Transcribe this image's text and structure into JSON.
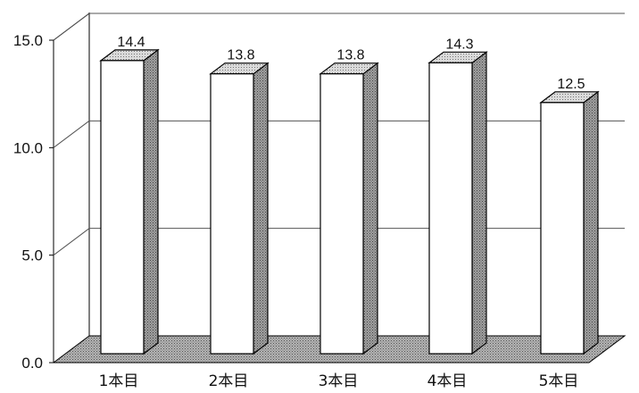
{
  "chart_data": {
    "type": "bar",
    "style": "3d-column",
    "title": "",
    "xlabel": "",
    "ylabel": "",
    "ylim": [
      0,
      15
    ],
    "yticks": [
      "0.0",
      "5.0",
      "10.0",
      "15.0"
    ],
    "categories": [
      "1本目",
      "2本目",
      "3本目",
      "4本目",
      "5本目"
    ],
    "values": [
      14.4,
      13.8,
      13.8,
      14.3,
      12.5
    ],
    "data_labels": [
      "14.4",
      "13.8",
      "13.8",
      "14.3",
      "12.5"
    ],
    "grid": true,
    "legend": "none",
    "colors": {
      "bar_face": "#ffffff",
      "bar_side": "#9a9a9a",
      "bar_top": "#d4d4d4",
      "floor": "#a8a8a8",
      "outline": "#000000",
      "grid": "#555555"
    }
  }
}
